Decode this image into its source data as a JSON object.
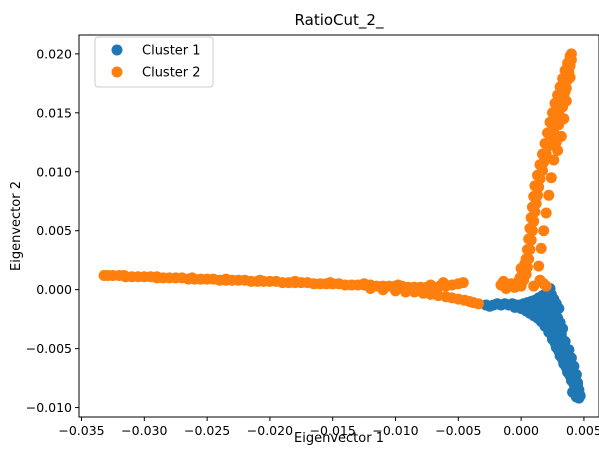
{
  "chart_data": {
    "type": "scatter",
    "title": "RatioCut_2_",
    "xlabel": "Eigenvector 1",
    "ylabel": "Eigenvector 2",
    "xlim": [
      -0.0352,
      0.0062
    ],
    "ylim": [
      -0.0108,
      0.0216
    ],
    "xticks": [
      -0.035,
      -0.03,
      -0.025,
      -0.02,
      -0.015,
      -0.01,
      -0.005,
      0.0,
      0.005
    ],
    "xtick_labels": [
      "−0.035",
      "−0.030",
      "−0.025",
      "−0.020",
      "−0.015",
      "−0.010",
      "−0.005",
      "0.000",
      "0.005"
    ],
    "yticks": [
      -0.01,
      -0.005,
      0.0,
      0.005,
      0.01,
      0.015,
      0.02
    ],
    "ytick_labels": [
      "−0.010",
      "−0.005",
      "0.000",
      "0.005",
      "0.010",
      "0.015",
      "0.020"
    ],
    "grid": false,
    "legend_position": "top-left",
    "series": [
      {
        "name": "Cluster 1",
        "color": "#1f77b4",
        "points": [
          [
            -0.0028,
            -0.0013
          ],
          [
            -0.0025,
            -0.0014
          ],
          [
            -0.0022,
            -0.0013
          ],
          [
            -0.0019,
            -0.0012
          ],
          [
            -0.0016,
            -0.0013
          ],
          [
            -0.0013,
            -0.0012
          ],
          [
            -0.001,
            -0.0013
          ],
          [
            -0.0007,
            -0.0012
          ],
          [
            -0.0004,
            -0.0013
          ],
          [
            -0.0001,
            -0.0013
          ],
          [
            0.0002,
            -0.0012
          ],
          [
            0.0005,
            -0.0011
          ],
          [
            0.0008,
            -0.001
          ],
          [
            0.0011,
            -0.0009
          ],
          [
            0.0014,
            -0.0007
          ],
          [
            0.0017,
            -0.0005
          ],
          [
            0.002,
            -0.0003
          ],
          [
            0.0022,
            -0.0001
          ],
          [
            0.0023,
            0.0001
          ],
          [
            0.0021,
            -0.0006
          ],
          [
            0.0019,
            -0.001
          ],
          [
            0.0024,
            -0.0004
          ],
          [
            -0.0005,
            -0.0015
          ],
          [
            0.0,
            -0.0016
          ],
          [
            0.0004,
            -0.0018
          ],
          [
            0.0007,
            -0.002
          ],
          [
            0.001,
            -0.0022
          ],
          [
            0.0013,
            -0.0024
          ],
          [
            0.0016,
            -0.0027
          ],
          [
            0.0019,
            -0.0031
          ],
          [
            0.0022,
            -0.0036
          ],
          [
            0.0025,
            -0.0042
          ],
          [
            0.0028,
            -0.0049
          ],
          [
            0.0031,
            -0.0056
          ],
          [
            0.0034,
            -0.0063
          ],
          [
            0.0037,
            -0.007
          ],
          [
            0.004,
            -0.0077
          ],
          [
            0.0043,
            -0.0084
          ],
          [
            0.0045,
            -0.0089
          ],
          [
            0.0046,
            -0.0092
          ],
          [
            0.0005,
            -0.0014
          ],
          [
            0.0009,
            -0.0016
          ],
          [
            0.0013,
            -0.0018
          ],
          [
            0.0017,
            -0.0021
          ],
          [
            0.0021,
            -0.0025
          ],
          [
            0.0024,
            -0.003
          ],
          [
            0.0027,
            -0.0035
          ],
          [
            0.003,
            -0.0041
          ],
          [
            0.0033,
            -0.0047
          ],
          [
            0.0036,
            -0.0054
          ],
          [
            0.0039,
            -0.0061
          ],
          [
            0.0041,
            -0.0068
          ],
          [
            0.0043,
            -0.0075
          ],
          [
            0.0045,
            -0.0082
          ],
          [
            0.0046,
            -0.0088
          ],
          [
            0.0012,
            -0.0013
          ],
          [
            0.0016,
            -0.0016
          ],
          [
            0.002,
            -0.0019
          ],
          [
            0.0023,
            -0.0023
          ],
          [
            0.0026,
            -0.0027
          ],
          [
            0.0029,
            -0.0032
          ],
          [
            0.0032,
            -0.0038
          ],
          [
            0.0035,
            -0.0044
          ],
          [
            0.0038,
            -0.0051
          ],
          [
            0.004,
            -0.0058
          ],
          [
            0.0042,
            -0.0065
          ],
          [
            0.0044,
            -0.0072
          ],
          [
            0.0045,
            -0.0079
          ],
          [
            0.0046,
            -0.0085
          ],
          [
            0.0047,
            -0.009
          ],
          [
            0.002,
            -0.001
          ],
          [
            0.0023,
            -0.0013
          ],
          [
            0.0025,
            -0.0016
          ],
          [
            0.0027,
            -0.002
          ],
          [
            0.0029,
            -0.0024
          ],
          [
            0.0031,
            -0.0028
          ],
          [
            0.0033,
            -0.0033
          ],
          [
            0.0026,
            -0.0008
          ],
          [
            0.0028,
            -0.0012
          ],
          [
            0.003,
            -0.0016
          ],
          [
            0.0024,
            -0.0006
          ],
          [
            0.0018,
            -0.0015
          ],
          [
            0.0014,
            -0.0011
          ],
          [
            0.0009,
            -0.0013
          ],
          [
            0.0002,
            -0.0014
          ],
          [
            0.0041,
            -0.0087
          ],
          [
            0.0044,
            -0.0091
          ],
          [
            0.0042,
            -0.008
          ],
          [
            0.0039,
            -0.0073
          ],
          [
            0.0036,
            -0.0066
          ],
          [
            0.0033,
            -0.0059
          ],
          [
            0.003,
            -0.0052
          ],
          [
            0.0027,
            -0.0045
          ],
          [
            0.0024,
            -0.0038
          ],
          [
            0.0021,
            -0.0032
          ]
        ]
      },
      {
        "name": "Cluster 2",
        "color": "#ff7f0e",
        "points": [
          [
            -0.0332,
            0.0012
          ],
          [
            -0.0329,
            0.0012
          ],
          [
            -0.0325,
            0.0012
          ],
          [
            -0.032,
            0.0012
          ],
          [
            -0.0315,
            0.0011
          ],
          [
            -0.031,
            0.0011
          ],
          [
            -0.0305,
            0.0011
          ],
          [
            -0.03,
            0.0011
          ],
          [
            -0.0295,
            0.0011
          ],
          [
            -0.029,
            0.001
          ],
          [
            -0.0285,
            0.001
          ],
          [
            -0.028,
            0.001
          ],
          [
            -0.0275,
            0.001
          ],
          [
            -0.027,
            0.001
          ],
          [
            -0.0265,
            0.0009
          ],
          [
            -0.026,
            0.0009
          ],
          [
            -0.0255,
            0.0009
          ],
          [
            -0.025,
            0.0009
          ],
          [
            -0.0245,
            0.0009
          ],
          [
            -0.024,
            0.0008
          ],
          [
            -0.0235,
            0.0008
          ],
          [
            -0.023,
            0.0008
          ],
          [
            -0.0225,
            0.0008
          ],
          [
            -0.022,
            0.0008
          ],
          [
            -0.0215,
            0.0007
          ],
          [
            -0.021,
            0.0007
          ],
          [
            -0.0205,
            0.0007
          ],
          [
            -0.02,
            0.0007
          ],
          [
            -0.0195,
            0.0007
          ],
          [
            -0.019,
            0.0006
          ],
          [
            -0.0185,
            0.0006
          ],
          [
            -0.018,
            0.0006
          ],
          [
            -0.0175,
            0.0006
          ],
          [
            -0.017,
            0.0006
          ],
          [
            -0.0165,
            0.0005
          ],
          [
            -0.016,
            0.0005
          ],
          [
            -0.0155,
            0.0005
          ],
          [
            -0.015,
            0.0005
          ],
          [
            -0.0145,
            0.0005
          ],
          [
            -0.014,
            0.0004
          ],
          [
            -0.0135,
            0.0004
          ],
          [
            -0.013,
            0.0004
          ],
          [
            -0.0125,
            0.0004
          ],
          [
            -0.012,
            0.0004
          ],
          [
            -0.0115,
            0.0003
          ],
          [
            -0.011,
            0.0003
          ],
          [
            -0.0105,
            0.0003
          ],
          [
            -0.01,
            0.0003
          ],
          [
            -0.0095,
            0.0003
          ],
          [
            -0.009,
            0.0002
          ],
          [
            -0.0085,
            0.0002
          ],
          [
            -0.008,
            0.0002
          ],
          [
            -0.0075,
            0.0002
          ],
          [
            -0.007,
            0.0002
          ],
          [
            -0.0065,
            0.0003
          ],
          [
            -0.006,
            0.0003
          ],
          [
            -0.0055,
            0.0004
          ],
          [
            -0.005,
            0.0005
          ],
          [
            -0.0046,
            0.0006
          ],
          [
            -0.012,
            0.0001
          ],
          [
            -0.011,
            0.0
          ],
          [
            -0.01,
            -0.0001
          ],
          [
            -0.0092,
            -0.0002
          ],
          [
            -0.0085,
            -0.0002
          ],
          [
            -0.0078,
            -0.0003
          ],
          [
            -0.0072,
            -0.0004
          ],
          [
            -0.0066,
            -0.0005
          ],
          [
            -0.006,
            -0.0006
          ],
          [
            -0.0055,
            -0.0007
          ],
          [
            -0.005,
            -0.0008
          ],
          [
            -0.0045,
            -0.0009
          ],
          [
            -0.0041,
            -0.001
          ],
          [
            -0.0038,
            -0.0011
          ],
          [
            -0.0034,
            -0.0012
          ],
          [
            -0.0316,
            0.0012
          ],
          [
            -0.029,
            0.0011
          ],
          [
            -0.0262,
            0.001
          ],
          [
            -0.0235,
            0.0009
          ],
          [
            -0.0208,
            0.0008
          ],
          [
            -0.018,
            0.0007
          ],
          [
            -0.0152,
            0.0006
          ],
          [
            -0.0125,
            0.0005
          ],
          [
            -0.0098,
            0.0004
          ],
          [
            -0.0072,
            0.0004
          ],
          [
            -0.0062,
            0.0006
          ],
          [
            -0.0016,
            0.0004
          ],
          [
            -0.0014,
            0.0007
          ],
          [
            -0.0012,
            0.0001
          ],
          [
            -0.0008,
            0.0005
          ],
          [
            -0.0005,
            0.0002
          ],
          [
            -0.0003,
            0.0006
          ],
          [
            0.0,
            0.0003
          ],
          [
            0.0002,
            0.0008
          ],
          [
            0.0004,
            0.0013
          ],
          [
            0.0005,
            0.0019
          ],
          [
            0.0006,
            0.0026
          ],
          [
            0.0007,
            0.0034
          ],
          [
            0.0008,
            0.0042
          ],
          [
            0.0009,
            0.005
          ],
          [
            0.001,
            0.0058
          ],
          [
            0.0011,
            0.0066
          ],
          [
            0.0012,
            0.0073
          ],
          [
            0.0013,
            0.008
          ],
          [
            0.0014,
            0.0087
          ],
          [
            0.0015,
            0.0094
          ],
          [
            0.0017,
            0.0101
          ],
          [
            0.0018,
            0.0108
          ],
          [
            0.002,
            0.0115
          ],
          [
            0.0022,
            0.0122
          ],
          [
            0.0024,
            0.0129
          ],
          [
            0.0026,
            0.0136
          ],
          [
            0.0028,
            0.0143
          ],
          [
            0.003,
            0.015
          ],
          [
            0.0032,
            0.0157
          ],
          [
            0.0034,
            0.0164
          ],
          [
            0.0036,
            0.0171
          ],
          [
            0.0037,
            0.0178
          ],
          [
            0.0038,
            0.0184
          ],
          [
            0.0039,
            0.019
          ],
          [
            0.004,
            0.0195
          ],
          [
            0.004,
            0.02
          ],
          [
            0.0039,
            0.0198
          ],
          [
            0.0037,
            0.0192
          ],
          [
            0.0035,
            0.0186
          ],
          [
            0.0033,
            0.0179
          ],
          [
            0.0031,
            0.0172
          ],
          [
            0.0029,
            0.0165
          ],
          [
            0.0027,
            0.0158
          ],
          [
            0.0025,
            0.015
          ],
          [
            0.0023,
            0.0142
          ],
          [
            0.0021,
            0.0133
          ],
          [
            0.0019,
            0.0124
          ],
          [
            0.0017,
            0.0115
          ],
          [
            0.0015,
            0.0106
          ],
          [
            0.0013,
            0.0097
          ],
          [
            0.0011,
            0.0088
          ],
          [
            0.001,
            0.0079
          ],
          [
            0.0009,
            0.007
          ],
          [
            0.0008,
            0.0061
          ],
          [
            0.0007,
            0.0052
          ],
          [
            0.0006,
            0.0043
          ],
          [
            0.0005,
            0.0034
          ],
          [
            0.0004,
            0.0026
          ],
          [
            0.0003,
            0.0018
          ],
          [
            0.0002,
            0.0011
          ],
          [
            0.0015,
            0.0008
          ],
          [
            0.0018,
            0.0005
          ],
          [
            0.002,
            0.0003
          ],
          [
            0.0014,
            0.002
          ],
          [
            0.0016,
            0.0035
          ],
          [
            0.0018,
            0.005
          ],
          [
            0.002,
            0.0065
          ],
          [
            0.0022,
            0.008
          ],
          [
            0.0024,
            0.0095
          ],
          [
            0.0026,
            0.011
          ],
          [
            0.0028,
            0.0125
          ],
          [
            0.003,
            0.014
          ],
          [
            0.0033,
            0.0155
          ],
          [
            0.0035,
            0.0168
          ],
          [
            0.0038,
            0.0188
          ],
          [
            0.0039,
            0.018
          ],
          [
            0.0036,
            0.016
          ],
          [
            0.0034,
            0.0145
          ],
          [
            0.0032,
            0.013
          ],
          [
            0.0029,
            0.0118
          ],
          [
            -0.0001,
            0.001
          ],
          [
            0.0001,
            0.0014
          ],
          [
            0.0003,
            0.0022
          ],
          [
            0.0,
            0.0018
          ],
          [
            0.001,
            0.0003
          ]
        ]
      }
    ]
  }
}
